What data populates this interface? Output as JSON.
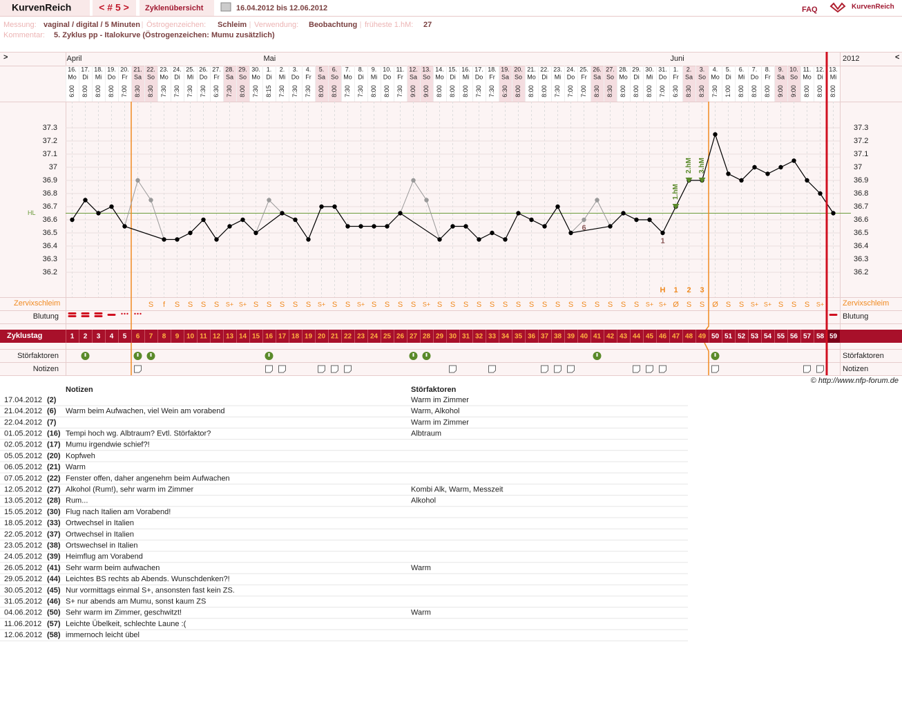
{
  "header": {
    "app": "KurvenReich",
    "cycle_nav": "< # 5 >",
    "tab": "Zyklenübersicht",
    "range": "16.04.2012 bis 12.06.2012",
    "faq": "FAQ",
    "logo": "KurvenReich"
  },
  "info": [
    {
      "label": "Messung:",
      "value": "vaginal / digital / 5 Minuten"
    },
    {
      "label": "Östrogenzeichen:",
      "value": "Schleim"
    },
    {
      "label": "Verwendung:",
      "value": "Beobachtung"
    },
    {
      "label": "früheste 1.hM:",
      "value": "27"
    }
  ],
  "comment": {
    "label": "Kommentar:",
    "value": "5. Zyklus pp - Italokurve (Östrogenzeichen: Mumu zusätzlich)"
  },
  "nav": {
    "prev": ">",
    "year": "2012",
    "next": "<"
  },
  "row_labels": {
    "mucus": "Zervixschleim",
    "bleeding": "Blutung",
    "cycle_day": "Zyklustag",
    "factors": "Störfaktoren",
    "notes": "Notizen"
  },
  "copyright": "© http://www.nfp-forum.de",
  "chart_data": {
    "type": "line",
    "categories": [
      "16.",
      "17.",
      "18.",
      "19.",
      "20.",
      "21.",
      "22.",
      "23.",
      "24.",
      "25.",
      "26.",
      "27.",
      "28.",
      "29.",
      "30.",
      "1.",
      "2.",
      "3.",
      "4.",
      "5.",
      "6.",
      "7.",
      "8.",
      "9.",
      "10.",
      "11.",
      "12.",
      "13.",
      "14.",
      "15.",
      "16.",
      "17.",
      "18.",
      "19.",
      "20.",
      "21.",
      "22.",
      "23.",
      "24.",
      "25.",
      "26.",
      "27.",
      "28.",
      "29.",
      "30.",
      "31.",
      "1.",
      "2.",
      "3.",
      "4.",
      "5.",
      "6.",
      "7.",
      "8.",
      "9.",
      "10.",
      "11.",
      "12.",
      "13."
    ],
    "weekdays": [
      "Mo",
      "Di",
      "Mi",
      "Do",
      "Fr",
      "Sa",
      "So",
      "Mo",
      "Di",
      "Mi",
      "Do",
      "Fr",
      "Sa",
      "So",
      "Mo",
      "Di",
      "Mi",
      "Do",
      "Fr",
      "Sa",
      "So",
      "Mo",
      "Di",
      "Mi",
      "Do",
      "Fr",
      "Sa",
      "So",
      "Mo",
      "Di",
      "Mi",
      "Do",
      "Fr",
      "Sa",
      "So",
      "Mo",
      "Di",
      "Mi",
      "Do",
      "Fr",
      "Sa",
      "So",
      "Mo",
      "Di",
      "Mi",
      "Do",
      "Fr",
      "Sa",
      "So",
      "Mo",
      "Di",
      "Mi",
      "Do",
      "Fr",
      "Sa",
      "So",
      "Mo",
      "Di",
      "Mi"
    ],
    "times": [
      "6:00",
      "8:00",
      "8:00",
      "8:00",
      "7:00",
      "8:30",
      "8:30",
      "7:30",
      "7:30",
      "7:30",
      "7:30",
      "6:30",
      "7:30",
      "8:00",
      "7:30",
      "8:15",
      "7:30",
      "7:30",
      "7:30",
      "8:00",
      "8:00",
      "7:30",
      "7:30",
      "8:00",
      "8:00",
      "7:30",
      "9:00",
      "9:00",
      "8:00",
      "8:00",
      "8:00",
      "7:30",
      "7:30",
      "6:30",
      "8:00",
      "8:00",
      "8:00",
      "7:30",
      "7:00",
      "7:00",
      "8:30",
      "8:30",
      "8:00",
      "8:00",
      "8:00",
      "7:00",
      "6:30",
      "8:30",
      "8:30",
      "7:30",
      "1:00",
      "8:00",
      "8:00",
      "8:00",
      "9:00",
      "9:00",
      "8:00",
      "8:00",
      "8:00"
    ],
    "months": [
      "April",
      "Mai",
      "Juni"
    ],
    "series": [
      {
        "color": "#000000",
        "excluded_color": "#999999",
        "values": [
          36.6,
          36.75,
          36.65,
          36.7,
          36.55,
          36.9,
          36.75,
          36.45,
          36.45,
          36.5,
          36.6,
          36.45,
          36.55,
          36.6,
          36.5,
          36.75,
          36.65,
          36.6,
          36.45,
          36.7,
          36.7,
          36.55,
          36.55,
          36.55,
          36.55,
          36.65,
          36.9,
          36.75,
          36.45,
          36.55,
          36.55,
          36.45,
          36.5,
          36.45,
          36.65,
          36.6,
          36.55,
          36.7,
          36.5,
          36.6,
          36.75,
          36.55,
          36.65,
          36.6,
          36.6,
          36.5,
          36.7,
          36.9,
          36.9,
          37.25,
          36.95,
          36.9,
          37.0,
          36.95,
          37.0,
          37.05,
          36.9,
          36.8,
          36.65
        ],
        "excluded_cycle_days": [
          6,
          7,
          16,
          27,
          28,
          40,
          41
        ]
      }
    ],
    "ylim": [
      36.0,
      37.5
    ],
    "yticks": [
      36.2,
      36.3,
      36.4,
      36.5,
      36.6,
      36.7,
      36.8,
      36.9,
      37,
      37.1,
      37.2,
      37.3
    ],
    "grid": true,
    "coverline": {
      "label": "HL",
      "value": 36.65,
      "color": "#6a9a3a"
    },
    "cycle_days": [
      1,
      2,
      3,
      4,
      5,
      6,
      7,
      8,
      9,
      10,
      11,
      12,
      13,
      14,
      15,
      16,
      17,
      18,
      19,
      20,
      21,
      22,
      23,
      24,
      25,
      26,
      27,
      28,
      29,
      30,
      31,
      32,
      33,
      34,
      35,
      36,
      37,
      38,
      39,
      40,
      41,
      42,
      43,
      44,
      45,
      46,
      47,
      48,
      49,
      50,
      51,
      52,
      53,
      54,
      55,
      56,
      57,
      58,
      59
    ],
    "mucus": [
      null,
      null,
      null,
      null,
      null,
      null,
      "S",
      "f",
      "S",
      "S",
      "S",
      "S",
      "S+",
      "S+",
      "S",
      "S",
      "S",
      "S",
      "S",
      "S+",
      "S",
      "S",
      "S+",
      "S",
      "S",
      "S",
      "S",
      "S+",
      "S",
      "S",
      "S",
      "S",
      "S",
      "S",
      "S",
      "S",
      "S",
      "S",
      "S",
      "S",
      "S",
      "S",
      "S",
      "S",
      "S+",
      "S+",
      "Ø",
      "S",
      "S",
      "Ø",
      "S",
      "S",
      "S+",
      "S+",
      "S",
      "S",
      "S",
      "S+",
      null
    ],
    "markers": [
      {
        "text": "H",
        "cycle_day": 46
      },
      {
        "text": "1",
        "cycle_day": 47
      },
      {
        "text": "2",
        "cycle_day": 48
      },
      {
        "text": "3",
        "cycle_day": 49
      }
    ],
    "point_labels": [
      {
        "text": "6",
        "cycle_day": 40
      },
      {
        "text": "1",
        "cycle_day": 46
      }
    ],
    "hm_labels": [
      {
        "text": "1.hM",
        "cycle_day": 47
      },
      {
        "text": "2.hM",
        "cycle_day": 48
      },
      {
        "text": "3.hM",
        "cycle_day": 49
      }
    ],
    "fertile_window": [
      6,
      49
    ],
    "current_cycle_day": 59
  },
  "notes": {
    "header": [
      "Notizen",
      "Störfaktoren"
    ],
    "rows": [
      [
        "17.04.2012",
        "(2)",
        null,
        "Warm im Zimmer"
      ],
      [
        "21.04.2012",
        "(6)",
        "Warm beim Aufwachen, viel Wein am vorabend",
        "Warm, Alkohol"
      ],
      [
        "22.04.2012",
        "(7)",
        null,
        "Warm im Zimmer"
      ],
      [
        "01.05.2012",
        "(16)",
        "Tempi hoch wg. Albtraum? Evtl. Störfaktor?",
        "Albtraum"
      ],
      [
        "02.05.2012",
        "(17)",
        "Mumu irgendwie schief?!",
        null
      ],
      [
        "05.05.2012",
        "(20)",
        "Kopfweh",
        null
      ],
      [
        "06.05.2012",
        "(21)",
        "Warm",
        null
      ],
      [
        "07.05.2012",
        "(22)",
        "Fenster offen, daher angenehm beim Aufwachen",
        null
      ],
      [
        "12.05.2012",
        "(27)",
        "Alkohol (Rum!), sehr warm im Zimmer",
        "Kombi Alk, Warm, Messzeit"
      ],
      [
        "13.05.2012",
        "(28)",
        "Rum...",
        "Alkohol"
      ],
      [
        "15.05.2012",
        "(30)",
        "Flug nach Italien am Vorabend!",
        null
      ],
      [
        "18.05.2012",
        "(33)",
        "Ortwechsel in Italien",
        null
      ],
      [
        "22.05.2012",
        "(37)",
        "Ortwechsel in Italien",
        null
      ],
      [
        "23.05.2012",
        "(38)",
        "Ortswechsel in Italien",
        null
      ],
      [
        "24.05.2012",
        "(39)",
        "Heimflug am Vorabend",
        null
      ],
      [
        "26.05.2012",
        "(41)",
        "Sehr warm beim aufwachen",
        "Warm"
      ],
      [
        "29.05.2012",
        "(44)",
        "Leichtes BS rechts ab Abends. Wunschdenken?!",
        null
      ],
      [
        "30.05.2012",
        "(45)",
        "Nur vormittags einmal S+, ansonsten fast kein ZS.",
        null
      ],
      [
        "31.05.2012",
        "(46)",
        "S+ nur abends am Mumu, sonst kaum ZS",
        null
      ],
      [
        "04.06.2012",
        "(50)",
        "Sehr warm im Zimmer, geschwitzt!",
        "Warm"
      ],
      [
        "11.06.2012",
        "(57)",
        "Leichte Übelkeit, schlechte Laune :(",
        null
      ],
      [
        "12.06.2012",
        "(58)",
        "immernoch leicht übel",
        null
      ]
    ]
  }
}
